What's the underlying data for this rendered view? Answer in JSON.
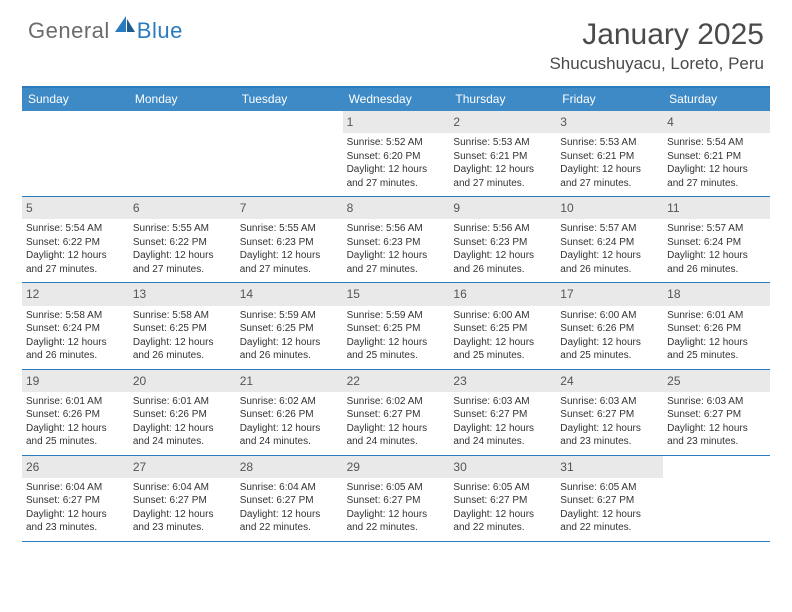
{
  "brand": {
    "general": "General",
    "blue": "Blue"
  },
  "title": {
    "month": "January 2025",
    "location": "Shucushuyacu, Loreto, Peru"
  },
  "colors": {
    "accent": "#3d8ac6",
    "accent_border": "#2b7bbf",
    "daynum_bg": "#e9e9e9",
    "text": "#333333",
    "header_text": "#4a4a4a",
    "logo_gray": "#6b6b6b",
    "white": "#ffffff"
  },
  "weekdays": [
    "Sunday",
    "Monday",
    "Tuesday",
    "Wednesday",
    "Thursday",
    "Friday",
    "Saturday"
  ],
  "weeks": [
    [
      {
        "day": "",
        "lines": []
      },
      {
        "day": "",
        "lines": []
      },
      {
        "day": "",
        "lines": []
      },
      {
        "day": "1",
        "lines": [
          "Sunrise: 5:52 AM",
          "Sunset: 6:20 PM",
          "Daylight: 12 hours",
          "and 27 minutes."
        ]
      },
      {
        "day": "2",
        "lines": [
          "Sunrise: 5:53 AM",
          "Sunset: 6:21 PM",
          "Daylight: 12 hours",
          "and 27 minutes."
        ]
      },
      {
        "day": "3",
        "lines": [
          "Sunrise: 5:53 AM",
          "Sunset: 6:21 PM",
          "Daylight: 12 hours",
          "and 27 minutes."
        ]
      },
      {
        "day": "4",
        "lines": [
          "Sunrise: 5:54 AM",
          "Sunset: 6:21 PM",
          "Daylight: 12 hours",
          "and 27 minutes."
        ]
      }
    ],
    [
      {
        "day": "5",
        "lines": [
          "Sunrise: 5:54 AM",
          "Sunset: 6:22 PM",
          "Daylight: 12 hours",
          "and 27 minutes."
        ]
      },
      {
        "day": "6",
        "lines": [
          "Sunrise: 5:55 AM",
          "Sunset: 6:22 PM",
          "Daylight: 12 hours",
          "and 27 minutes."
        ]
      },
      {
        "day": "7",
        "lines": [
          "Sunrise: 5:55 AM",
          "Sunset: 6:23 PM",
          "Daylight: 12 hours",
          "and 27 minutes."
        ]
      },
      {
        "day": "8",
        "lines": [
          "Sunrise: 5:56 AM",
          "Sunset: 6:23 PM",
          "Daylight: 12 hours",
          "and 27 minutes."
        ]
      },
      {
        "day": "9",
        "lines": [
          "Sunrise: 5:56 AM",
          "Sunset: 6:23 PM",
          "Daylight: 12 hours",
          "and 26 minutes."
        ]
      },
      {
        "day": "10",
        "lines": [
          "Sunrise: 5:57 AM",
          "Sunset: 6:24 PM",
          "Daylight: 12 hours",
          "and 26 minutes."
        ]
      },
      {
        "day": "11",
        "lines": [
          "Sunrise: 5:57 AM",
          "Sunset: 6:24 PM",
          "Daylight: 12 hours",
          "and 26 minutes."
        ]
      }
    ],
    [
      {
        "day": "12",
        "lines": [
          "Sunrise: 5:58 AM",
          "Sunset: 6:24 PM",
          "Daylight: 12 hours",
          "and 26 minutes."
        ]
      },
      {
        "day": "13",
        "lines": [
          "Sunrise: 5:58 AM",
          "Sunset: 6:25 PM",
          "Daylight: 12 hours",
          "and 26 minutes."
        ]
      },
      {
        "day": "14",
        "lines": [
          "Sunrise: 5:59 AM",
          "Sunset: 6:25 PM",
          "Daylight: 12 hours",
          "and 26 minutes."
        ]
      },
      {
        "day": "15",
        "lines": [
          "Sunrise: 5:59 AM",
          "Sunset: 6:25 PM",
          "Daylight: 12 hours",
          "and 25 minutes."
        ]
      },
      {
        "day": "16",
        "lines": [
          "Sunrise: 6:00 AM",
          "Sunset: 6:25 PM",
          "Daylight: 12 hours",
          "and 25 minutes."
        ]
      },
      {
        "day": "17",
        "lines": [
          "Sunrise: 6:00 AM",
          "Sunset: 6:26 PM",
          "Daylight: 12 hours",
          "and 25 minutes."
        ]
      },
      {
        "day": "18",
        "lines": [
          "Sunrise: 6:01 AM",
          "Sunset: 6:26 PM",
          "Daylight: 12 hours",
          "and 25 minutes."
        ]
      }
    ],
    [
      {
        "day": "19",
        "lines": [
          "Sunrise: 6:01 AM",
          "Sunset: 6:26 PM",
          "Daylight: 12 hours",
          "and 25 minutes."
        ]
      },
      {
        "day": "20",
        "lines": [
          "Sunrise: 6:01 AM",
          "Sunset: 6:26 PM",
          "Daylight: 12 hours",
          "and 24 minutes."
        ]
      },
      {
        "day": "21",
        "lines": [
          "Sunrise: 6:02 AM",
          "Sunset: 6:26 PM",
          "Daylight: 12 hours",
          "and 24 minutes."
        ]
      },
      {
        "day": "22",
        "lines": [
          "Sunrise: 6:02 AM",
          "Sunset: 6:27 PM",
          "Daylight: 12 hours",
          "and 24 minutes."
        ]
      },
      {
        "day": "23",
        "lines": [
          "Sunrise: 6:03 AM",
          "Sunset: 6:27 PM",
          "Daylight: 12 hours",
          "and 24 minutes."
        ]
      },
      {
        "day": "24",
        "lines": [
          "Sunrise: 6:03 AM",
          "Sunset: 6:27 PM",
          "Daylight: 12 hours",
          "and 23 minutes."
        ]
      },
      {
        "day": "25",
        "lines": [
          "Sunrise: 6:03 AM",
          "Sunset: 6:27 PM",
          "Daylight: 12 hours",
          "and 23 minutes."
        ]
      }
    ],
    [
      {
        "day": "26",
        "lines": [
          "Sunrise: 6:04 AM",
          "Sunset: 6:27 PM",
          "Daylight: 12 hours",
          "and 23 minutes."
        ]
      },
      {
        "day": "27",
        "lines": [
          "Sunrise: 6:04 AM",
          "Sunset: 6:27 PM",
          "Daylight: 12 hours",
          "and 23 minutes."
        ]
      },
      {
        "day": "28",
        "lines": [
          "Sunrise: 6:04 AM",
          "Sunset: 6:27 PM",
          "Daylight: 12 hours",
          "and 22 minutes."
        ]
      },
      {
        "day": "29",
        "lines": [
          "Sunrise: 6:05 AM",
          "Sunset: 6:27 PM",
          "Daylight: 12 hours",
          "and 22 minutes."
        ]
      },
      {
        "day": "30",
        "lines": [
          "Sunrise: 6:05 AM",
          "Sunset: 6:27 PM",
          "Daylight: 12 hours",
          "and 22 minutes."
        ]
      },
      {
        "day": "31",
        "lines": [
          "Sunrise: 6:05 AM",
          "Sunset: 6:27 PM",
          "Daylight: 12 hours",
          "and 22 minutes."
        ]
      },
      {
        "day": "",
        "lines": []
      }
    ]
  ]
}
